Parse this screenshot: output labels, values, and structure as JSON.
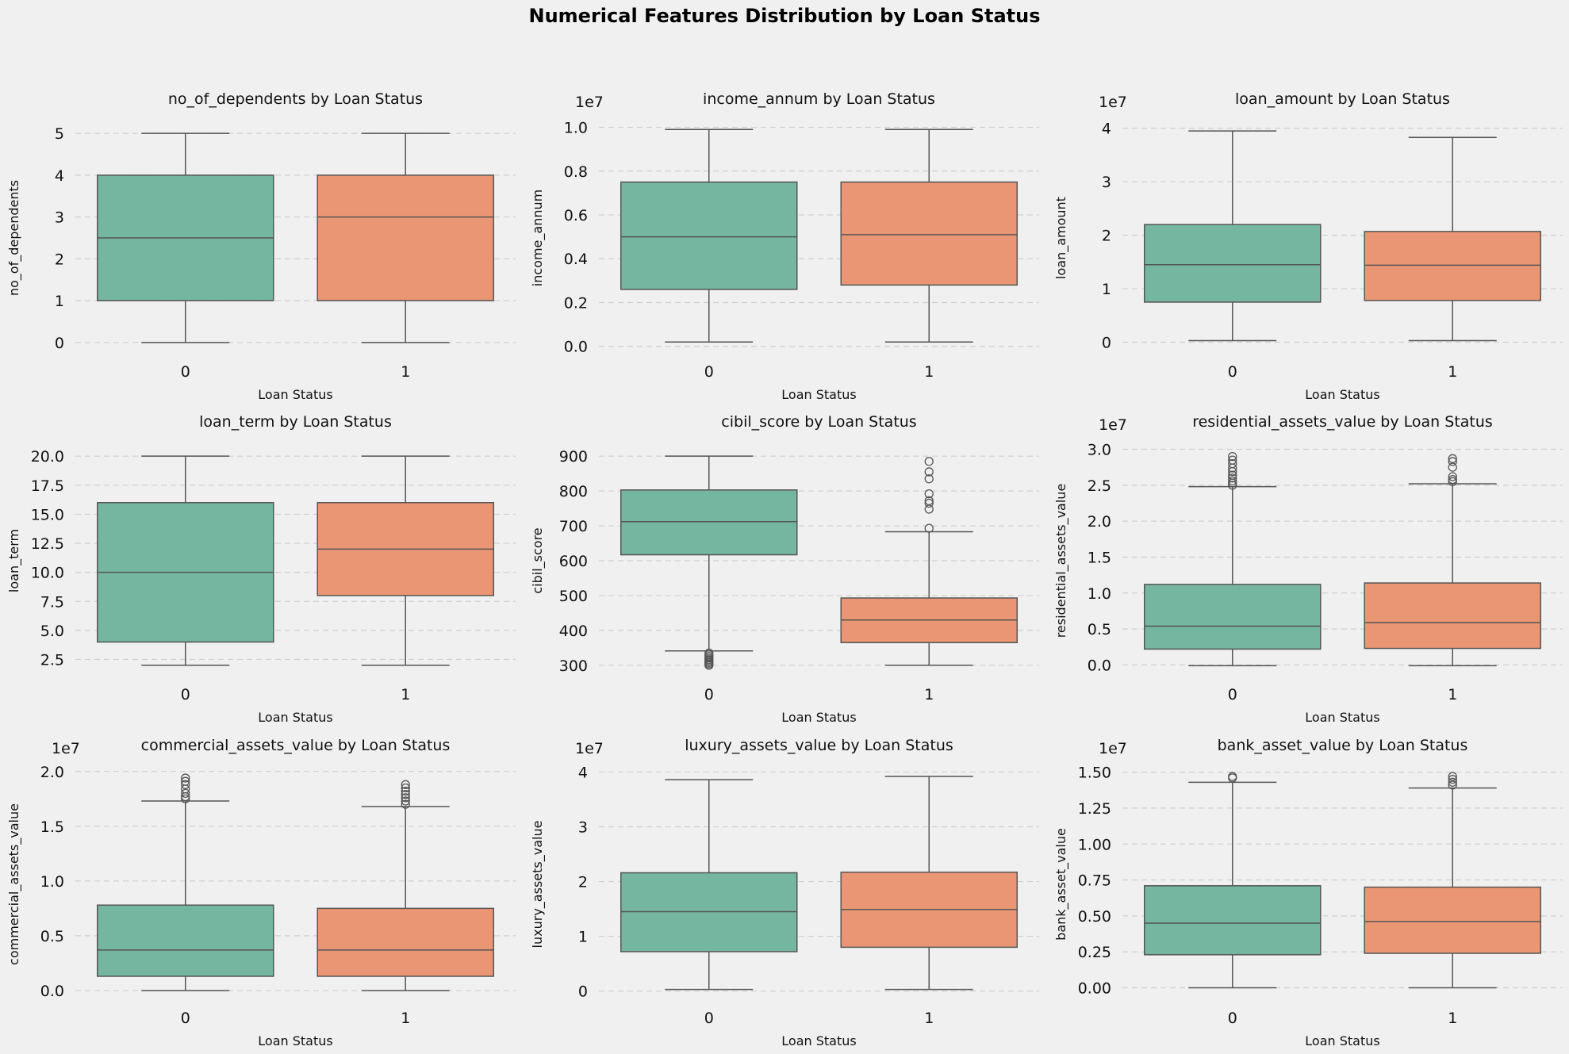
{
  "figure": {
    "title": "Numerical Features Distribution by Loan Status",
    "colors": {
      "status_0": "#74b6a0",
      "status_1": "#ea9674",
      "line": "#555555",
      "grid": "#d0d0d0",
      "background": "#f0f0f0"
    }
  },
  "chart_data": [
    {
      "type": "box",
      "title": "no_of_dependents by Loan Status",
      "xlabel": "Loan Status",
      "ylabel": "no_of_dependents",
      "offset_text": "",
      "ylim": [
        -0.25,
        5.25
      ],
      "yticks": [
        0,
        1,
        2,
        3,
        4,
        5
      ],
      "yticklabels": [
        "0",
        "1",
        "2",
        "3",
        "4",
        "5"
      ],
      "grid": true,
      "categories": [
        "0",
        "1"
      ],
      "boxes": [
        {
          "category": "0",
          "whislo": 0,
          "q1": 1,
          "med": 2.5,
          "q3": 4,
          "whishi": 5,
          "fliers": []
        },
        {
          "category": "1",
          "whislo": 0,
          "q1": 1,
          "med": 3,
          "q3": 4,
          "whishi": 5,
          "fliers": []
        }
      ]
    },
    {
      "type": "box",
      "title": "income_annum by Loan Status",
      "xlabel": "Loan Status",
      "ylabel": "income_annum",
      "offset_text": "1e7",
      "ylim": [
        -0.03,
        1.02
      ],
      "yticks": [
        0,
        0.2,
        0.4,
        0.6,
        0.8,
        1.0
      ],
      "yticklabels": [
        "0.0",
        "0.2",
        "0.4",
        "0.6",
        "0.8",
        "1.0"
      ],
      "grid": true,
      "categories": [
        "0",
        "1"
      ],
      "boxes": [
        {
          "category": "0",
          "whislo": 0.02,
          "q1": 0.26,
          "med": 0.5,
          "q3": 0.75,
          "whishi": 0.99,
          "fliers": []
        },
        {
          "category": "1",
          "whislo": 0.02,
          "q1": 0.28,
          "med": 0.51,
          "q3": 0.75,
          "whishi": 0.99,
          "fliers": []
        }
      ]
    },
    {
      "type": "box",
      "title": "loan_amount by Loan Status",
      "xlabel": "Loan Status",
      "ylabel": "loan_amount",
      "offset_text": "1e7",
      "ylim": [
        -0.2,
        4.1
      ],
      "yticks": [
        0,
        1,
        2,
        3,
        4
      ],
      "yticklabels": [
        "0",
        "1",
        "2",
        "3",
        "4"
      ],
      "grid": true,
      "categories": [
        "0",
        "1"
      ],
      "boxes": [
        {
          "category": "0",
          "whislo": 0.03,
          "q1": 0.75,
          "med": 1.45,
          "q3": 2.2,
          "whishi": 3.95,
          "fliers": []
        },
        {
          "category": "1",
          "whislo": 0.03,
          "q1": 0.78,
          "med": 1.44,
          "q3": 2.07,
          "whishi": 3.83,
          "fliers": []
        }
      ]
    },
    {
      "type": "box",
      "title": "loan_term by Loan Status",
      "xlabel": "Loan Status",
      "ylabel": "loan_term",
      "offset_text": "",
      "ylim": [
        1.1,
        20.9
      ],
      "yticks": [
        2.5,
        5,
        7.5,
        10,
        12.5,
        15,
        17.5,
        20
      ],
      "yticklabels": [
        "2.5",
        "5.0",
        "7.5",
        "10.0",
        "12.5",
        "15.0",
        "17.5",
        "20.0"
      ],
      "grid": true,
      "categories": [
        "0",
        "1"
      ],
      "boxes": [
        {
          "category": "0",
          "whislo": 2,
          "q1": 4,
          "med": 10,
          "q3": 16,
          "whishi": 20,
          "fliers": []
        },
        {
          "category": "1",
          "whislo": 2,
          "q1": 8,
          "med": 12,
          "q3": 16,
          "whishi": 20,
          "fliers": []
        }
      ]
    },
    {
      "type": "box",
      "title": "cibil_score by Loan Status",
      "xlabel": "Loan Status",
      "ylabel": "cibil_score",
      "offset_text": "",
      "ylim": [
        270,
        930
      ],
      "yticks": [
        300,
        400,
        500,
        600,
        700,
        800,
        900
      ],
      "yticklabels": [
        "300",
        "400",
        "500",
        "600",
        "700",
        "800",
        "900"
      ],
      "grid": true,
      "categories": [
        "0",
        "1"
      ],
      "boxes": [
        {
          "category": "0",
          "whislo": 341,
          "q1": 617,
          "med": 712,
          "q3": 803,
          "whishi": 900,
          "fliers": [
            300,
            304,
            308,
            312,
            316,
            320,
            325,
            330,
            335
          ]
        },
        {
          "category": "1",
          "whislo": 300,
          "q1": 365,
          "med": 430,
          "q3": 493,
          "whishi": 683,
          "fliers": [
            693,
            748,
            765,
            772,
            792,
            835,
            855,
            885
          ]
        }
      ]
    },
    {
      "type": "box",
      "title": "residential_assets_value by Loan Status",
      "xlabel": "Loan Status",
      "ylabel": "residential_assets_value",
      "offset_text": "1e7",
      "ylim": [
        -0.15,
        3.05
      ],
      "yticks": [
        0,
        0.5,
        1,
        1.5,
        2,
        2.5,
        3
      ],
      "yticklabels": [
        "0.0",
        "0.5",
        "1.0",
        "1.5",
        "2.0",
        "2.5",
        "3.0"
      ],
      "grid": true,
      "categories": [
        "0",
        "1"
      ],
      "boxes": [
        {
          "category": "0",
          "whislo": -0.01,
          "q1": 0.22,
          "med": 0.54,
          "q3": 1.12,
          "whishi": 2.48,
          "fliers": [
            2.5,
            2.53,
            2.56,
            2.6,
            2.64,
            2.69,
            2.74,
            2.8,
            2.85,
            2.9
          ]
        },
        {
          "category": "1",
          "whislo": -0.01,
          "q1": 0.23,
          "med": 0.59,
          "q3": 1.14,
          "whishi": 2.52,
          "fliers": [
            2.55,
            2.58,
            2.62,
            2.75,
            2.83,
            2.87
          ]
        }
      ]
    },
    {
      "type": "box",
      "title": "commercial_assets_value by Loan Status",
      "xlabel": "Loan Status",
      "ylabel": "commercial_assets_value",
      "offset_text": "1e7",
      "ylim": [
        -0.08,
        2.02
      ],
      "yticks": [
        0,
        0.5,
        1,
        1.5,
        2
      ],
      "yticklabels": [
        "0.0",
        "0.5",
        "1.0",
        "1.5",
        "2.0"
      ],
      "grid": true,
      "categories": [
        "0",
        "1"
      ],
      "boxes": [
        {
          "category": "0",
          "whislo": 0,
          "q1": 0.13,
          "med": 0.37,
          "q3": 0.78,
          "whishi": 1.73,
          "fliers": [
            1.75,
            1.77,
            1.8,
            1.84,
            1.88,
            1.91,
            1.94
          ]
        },
        {
          "category": "1",
          "whislo": 0,
          "q1": 0.13,
          "med": 0.37,
          "q3": 0.75,
          "whishi": 1.68,
          "fliers": [
            1.7,
            1.73,
            1.76,
            1.79,
            1.82,
            1.85,
            1.88
          ]
        }
      ]
    },
    {
      "type": "box",
      "title": "luxury_assets_value by Loan Status",
      "xlabel": "Loan Status",
      "ylabel": "luxury_assets_value",
      "offset_text": "1e7",
      "ylim": [
        -0.15,
        4.05
      ],
      "yticks": [
        0,
        1,
        2,
        3,
        4
      ],
      "yticklabels": [
        "0",
        "1",
        "2",
        "3",
        "4"
      ],
      "grid": true,
      "categories": [
        "0",
        "1"
      ],
      "boxes": [
        {
          "category": "0",
          "whislo": 0.03,
          "q1": 0.72,
          "med": 1.45,
          "q3": 2.16,
          "whishi": 3.86,
          "fliers": []
        },
        {
          "category": "1",
          "whislo": 0.03,
          "q1": 0.8,
          "med": 1.49,
          "q3": 2.17,
          "whishi": 3.92,
          "fliers": []
        }
      ]
    },
    {
      "type": "box",
      "title": "bank_asset_value by Loan Status",
      "xlabel": "Loan Status",
      "ylabel": "bank_asset_value",
      "offset_text": "1e7",
      "ylim": [
        -0.08,
        1.52
      ],
      "yticks": [
        0,
        0.25,
        0.5,
        0.75,
        1,
        1.25,
        1.5
      ],
      "yticklabels": [
        "0.00",
        "0.25",
        "0.50",
        "0.75",
        "1.00",
        "1.25",
        "1.50"
      ],
      "grid": true,
      "categories": [
        "0",
        "1"
      ],
      "boxes": [
        {
          "category": "0",
          "whislo": 0,
          "q1": 0.23,
          "med": 0.45,
          "q3": 0.71,
          "whishi": 1.43,
          "fliers": [
            1.46,
            1.47
          ]
        },
        {
          "category": "1",
          "whislo": 0,
          "q1": 0.24,
          "med": 0.46,
          "q3": 0.7,
          "whishi": 1.39,
          "fliers": [
            1.41,
            1.43,
            1.45,
            1.47
          ]
        }
      ]
    }
  ]
}
